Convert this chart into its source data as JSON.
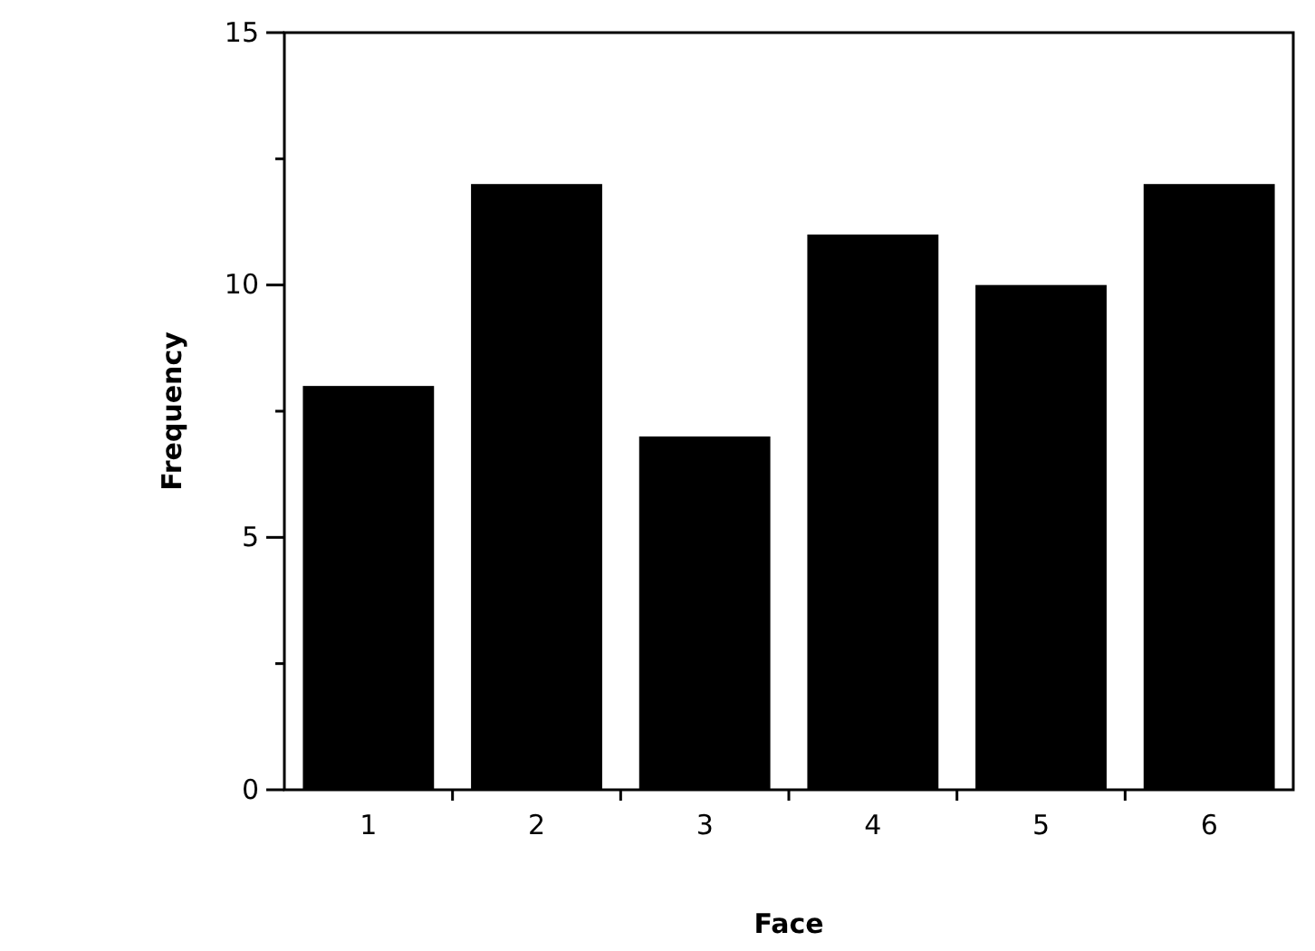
{
  "chart_data": {
    "type": "bar",
    "xlabel": "Face",
    "ylabel": "Frequency",
    "categories": [
      "1",
      "2",
      "3",
      "4",
      "5",
      "6"
    ],
    "values": [
      8,
      12,
      7,
      11,
      10,
      12
    ],
    "color": "#000000",
    "ylim": [
      0,
      15
    ],
    "yticks": [
      0,
      {
        "value": 2.5,
        "label": null
      },
      5,
      {
        "value": 7.5,
        "label": null
      },
      10,
      {
        "value": 12.5,
        "label": null
      },
      15
    ],
    "grid": false
  }
}
